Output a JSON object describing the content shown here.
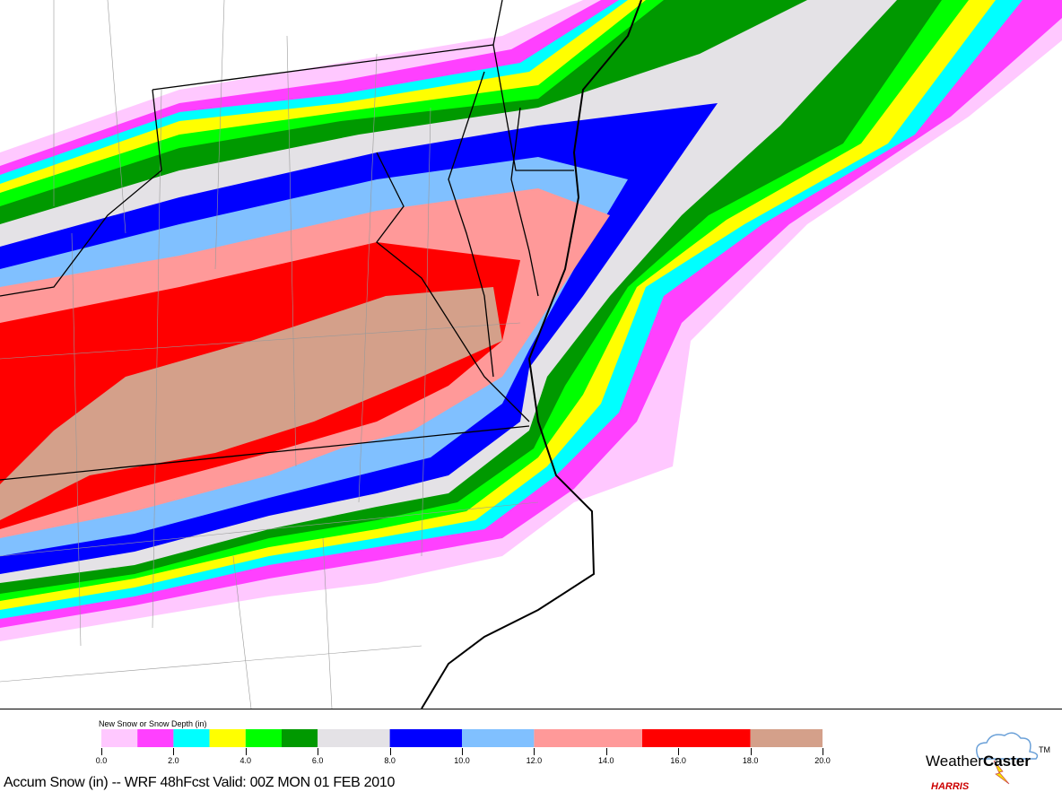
{
  "caption": "Accum Snow (in) -- WRF  48hFcst Valid: 00Z MON 01 FEB 2010",
  "legend": {
    "title": "New Snow or Snow Depth (in)",
    "bins": [
      {
        "from": 0,
        "to": 1,
        "color": "#ffc8ff"
      },
      {
        "from": 1,
        "to": 2,
        "color": "#ff40ff"
      },
      {
        "from": 2,
        "to": 3,
        "color": "#00ffff"
      },
      {
        "from": 3,
        "to": 4,
        "color": "#ffff00"
      },
      {
        "from": 4,
        "to": 5,
        "color": "#00ff00"
      },
      {
        "from": 5,
        "to": 6,
        "color": "#009900"
      },
      {
        "from": 6,
        "to": 8,
        "color": "#e4e2e6"
      },
      {
        "from": 8,
        "to": 10,
        "color": "#0000ff"
      },
      {
        "from": 10,
        "to": 12,
        "color": "#80c0ff"
      },
      {
        "from": 12,
        "to": 15,
        "color": "#ff9999"
      },
      {
        "from": 15,
        "to": 18,
        "color": "#ff0000"
      },
      {
        "from": 18,
        "to": 20,
        "color": "#d4a08a"
      }
    ],
    "ticks": [
      "0.0",
      "2.0",
      "4.0",
      "6.0",
      "8.0",
      "10.0",
      "12.0",
      "14.0",
      "16.0",
      "18.0",
      "20.0"
    ]
  },
  "logo": {
    "brand": "WeatherCaster",
    "tm": "TM",
    "company": "HARRIS"
  }
}
